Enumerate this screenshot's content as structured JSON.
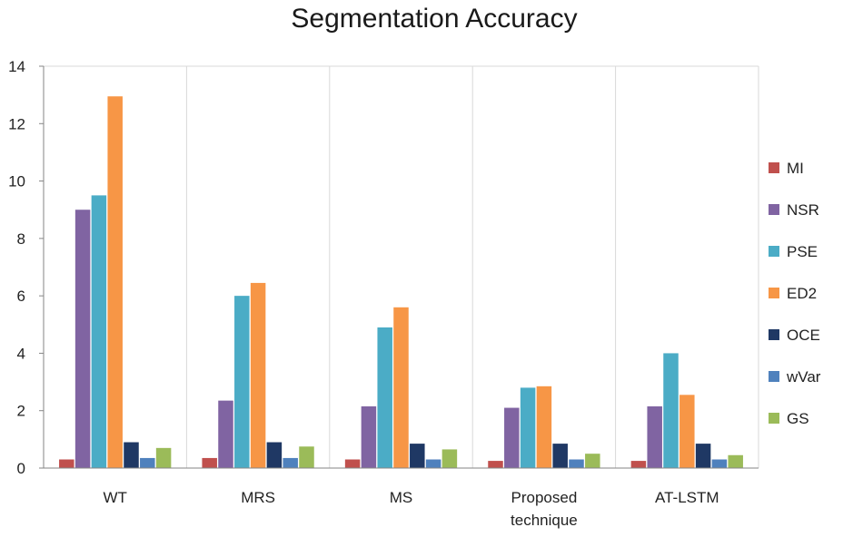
{
  "chart_data": {
    "type": "bar",
    "title": "Segmentation Accuracy",
    "xlabel": "",
    "ylabel": "",
    "ylim": [
      0,
      14
    ],
    "yticks": [
      "0",
      "2",
      "4",
      "6",
      "8",
      "10",
      "12",
      "14"
    ],
    "grid": "vertical lines between categories",
    "legend_position": "right",
    "categories": [
      {
        "lines": [
          "WT"
        ]
      },
      {
        "lines": [
          "MRS"
        ]
      },
      {
        "lines": [
          "MS"
        ]
      },
      {
        "lines": [
          "Proposed",
          "technique"
        ]
      },
      {
        "lines": [
          "AT-LSTM"
        ]
      }
    ],
    "series": [
      {
        "name": "MI",
        "color": "#c0504d",
        "values": [
          0.3,
          0.35,
          0.3,
          0.25,
          0.25
        ]
      },
      {
        "name": "NSR",
        "color": "#8064a2",
        "values": [
          9.0,
          2.35,
          2.15,
          2.1,
          2.15
        ]
      },
      {
        "name": "PSE",
        "color": "#4bacc6",
        "values": [
          9.5,
          6.0,
          4.9,
          2.8,
          4.0
        ]
      },
      {
        "name": "ED2",
        "color": "#f79646",
        "values": [
          12.95,
          6.45,
          5.6,
          2.85,
          2.55
        ]
      },
      {
        "name": "OCE",
        "color": "#1f3864",
        "values": [
          0.9,
          0.9,
          0.85,
          0.85,
          0.85
        ]
      },
      {
        "name": "wVar",
        "color": "#4f81bd",
        "values": [
          0.35,
          0.35,
          0.3,
          0.3,
          0.3
        ]
      },
      {
        "name": "GS",
        "color": "#9bbb59",
        "values": [
          0.7,
          0.75,
          0.65,
          0.5,
          0.45
        ]
      }
    ]
  }
}
